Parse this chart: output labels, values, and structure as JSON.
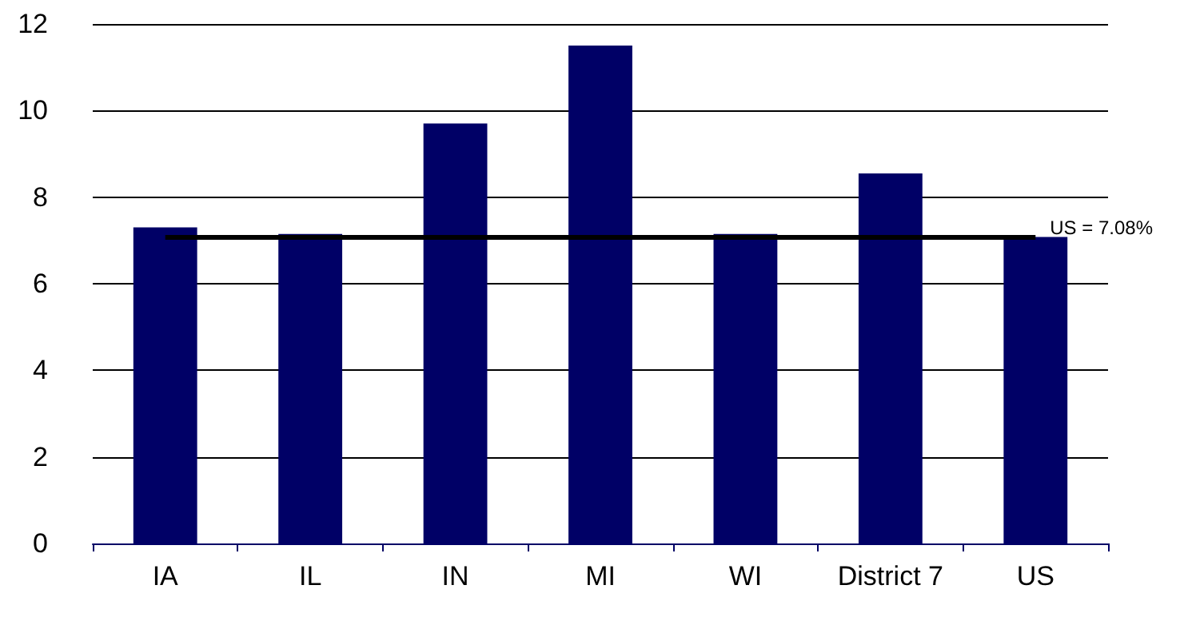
{
  "chart_data": {
    "type": "bar",
    "categories": [
      "IA",
      "IL",
      "IN",
      "MI",
      "WI",
      "District 7",
      "US"
    ],
    "values": [
      7.3,
      7.15,
      9.7,
      11.5,
      7.15,
      8.55,
      7.08
    ],
    "color": "#000066",
    "ylim": [
      0,
      12
    ],
    "yticks": [
      0,
      2,
      4,
      6,
      8,
      10,
      12
    ],
    "grid": "y",
    "ref_lines": [
      {
        "axis": "y",
        "value": 7.08,
        "label": "US = 7.08%",
        "color": "#000000"
      }
    ]
  }
}
